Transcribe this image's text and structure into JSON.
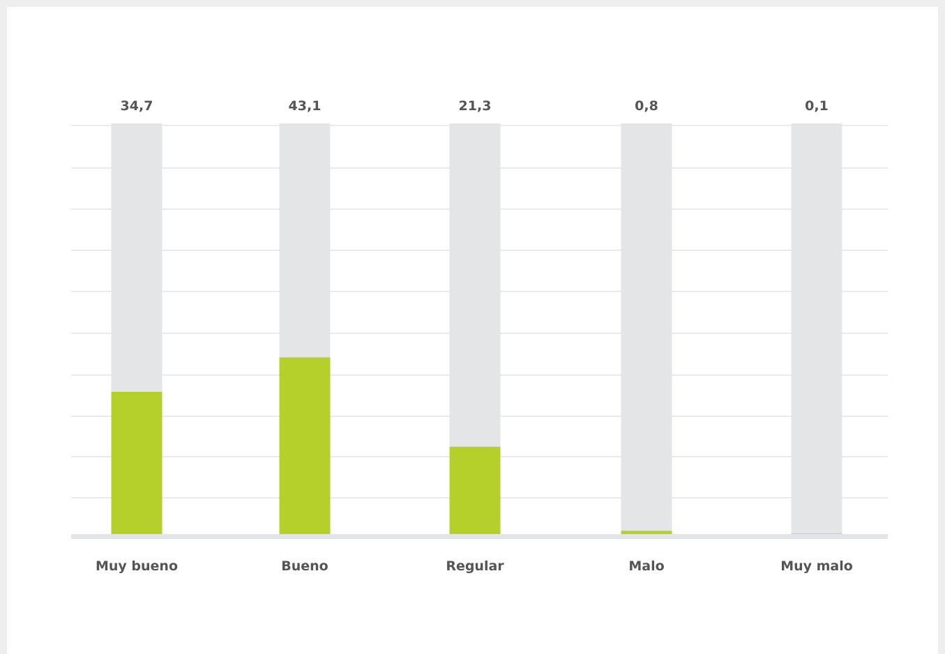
{
  "chart_data": {
    "type": "bar",
    "categories": [
      "Muy bueno",
      "Bueno",
      "Regular",
      "Malo",
      "Muy malo"
    ],
    "values": [
      34.7,
      43.1,
      21.3,
      0.8,
      0.1
    ],
    "value_labels": [
      "34,7",
      "43,1",
      "21,3",
      "0,8",
      "0,1"
    ],
    "title": "",
    "xlabel": "",
    "ylabel": "",
    "ylim": [
      0,
      100
    ],
    "grid": true,
    "legend": "none",
    "colors": {
      "bar": "#b5cf2b",
      "track": "#e4e5e7",
      "grid": "#eaeaea",
      "baseline": "#e4e5e7",
      "text": "#555555"
    }
  }
}
